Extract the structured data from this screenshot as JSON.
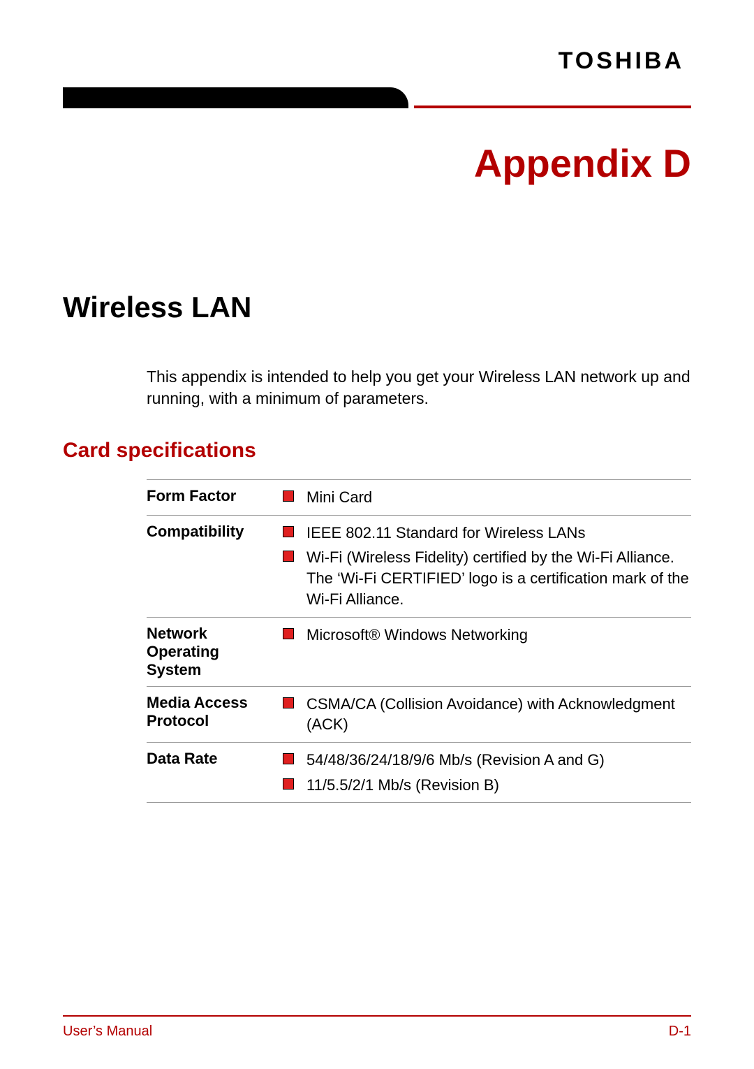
{
  "brand": {
    "logo_text": "TOSHIBA"
  },
  "colors": {
    "accent_red": "#b30000",
    "bullet_red": "#e02020",
    "rule_gray": "#9a9a9a",
    "text_black": "#000000",
    "bg_white": "#ffffff"
  },
  "page": {
    "appendix_title": "Appendix D",
    "section_title": "Wireless LAN",
    "intro_text": "This appendix is intended to help you get your Wireless LAN network up and running, with a minimum of parameters.",
    "subsection_title": "Card specifications"
  },
  "spec_table": {
    "rows": [
      {
        "label": "Form Factor",
        "items": [
          "Mini Card"
        ]
      },
      {
        "label": "Compatibility",
        "items": [
          "IEEE 802.11 Standard for Wireless LANs",
          "Wi-Fi (Wireless Fidelity) certified by the Wi-Fi Alliance. The ‘Wi-Fi CERTIFIED’ logo is a certification mark of the Wi-Fi Alliance."
        ]
      },
      {
        "label": "Network Operating System",
        "items": [
          "Microsoft® Windows Networking"
        ]
      },
      {
        "label": "Media Access Protocol",
        "items": [
          "CSMA/CA (Collision Avoidance) with Acknowledgment (ACK)"
        ]
      },
      {
        "label": "Data Rate",
        "items": [
          "54/48/36/24/18/9/6 Mb/s (Revision A and G)",
          "11/5.5/2/1 Mb/s (Revision B)"
        ]
      }
    ]
  },
  "footer": {
    "left": "User’s Manual",
    "right": "D-1"
  }
}
